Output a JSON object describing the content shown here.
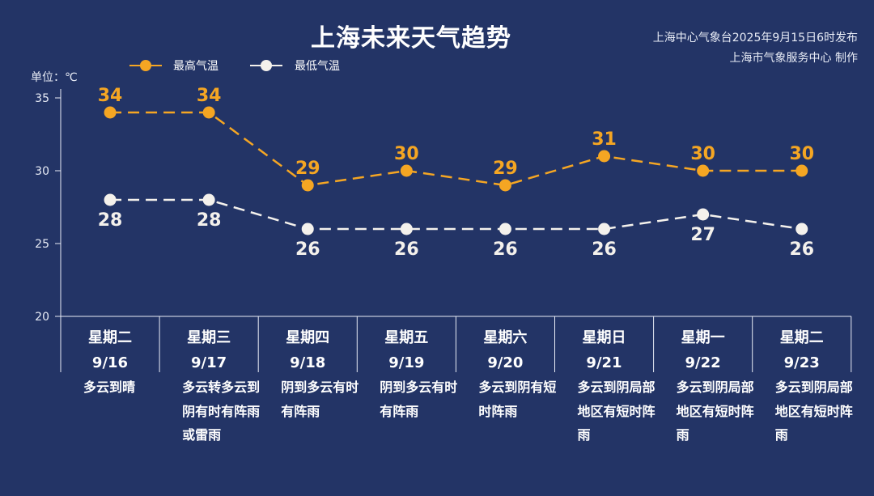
{
  "title": "上海未来天气趋势",
  "publisher_line1": "上海中心气象台2025年9月15日6时发布",
  "publisher_line2": "上海市气象服务中心 制作",
  "unit_label": "单位：℃",
  "legend": {
    "high": "最高气温",
    "low": "最低气温"
  },
  "colors": {
    "background": "#233466",
    "high": "#f5a623",
    "low": "#f4f1ec",
    "axis": "#e8ecf6"
  },
  "days": [
    {
      "weekday": "星期二",
      "date": "9/16",
      "weather": "多云到晴"
    },
    {
      "weekday": "星期三",
      "date": "9/17",
      "weather": "多云转多云到阴有时有阵雨或雷雨"
    },
    {
      "weekday": "星期四",
      "date": "9/18",
      "weather": "阴到多云有时有阵雨"
    },
    {
      "weekday": "星期五",
      "date": "9/19",
      "weather": "阴到多云有时有阵雨"
    },
    {
      "weekday": "星期六",
      "date": "9/20",
      "weather": "多云到阴有短时阵雨"
    },
    {
      "weekday": "星期日",
      "date": "9/21",
      "weather": "多云到阴局部地区有短时阵雨"
    },
    {
      "weekday": "星期一",
      "date": "9/22",
      "weather": "多云到阴局部地区有短时阵雨"
    },
    {
      "weekday": "星期二",
      "date": "9/23",
      "weather": "多云到阴局部地区有短时阵雨"
    }
  ],
  "chart_data": {
    "type": "line",
    "categories": [
      "9/16",
      "9/17",
      "9/18",
      "9/19",
      "9/20",
      "9/21",
      "9/22",
      "9/23"
    ],
    "series": [
      {
        "name": "最高气温",
        "values": [
          34,
          34,
          29,
          30,
          29,
          31,
          30,
          30
        ]
      },
      {
        "name": "最低气温",
        "values": [
          28,
          28,
          26,
          26,
          26,
          26,
          27,
          26
        ]
      }
    ],
    "ylim": [
      20,
      35
    ],
    "yticks": [
      20,
      25,
      30,
      35
    ],
    "ylabel": "单位：℃",
    "legend_position": "top-left",
    "line_style": "dashed",
    "grid": false
  }
}
